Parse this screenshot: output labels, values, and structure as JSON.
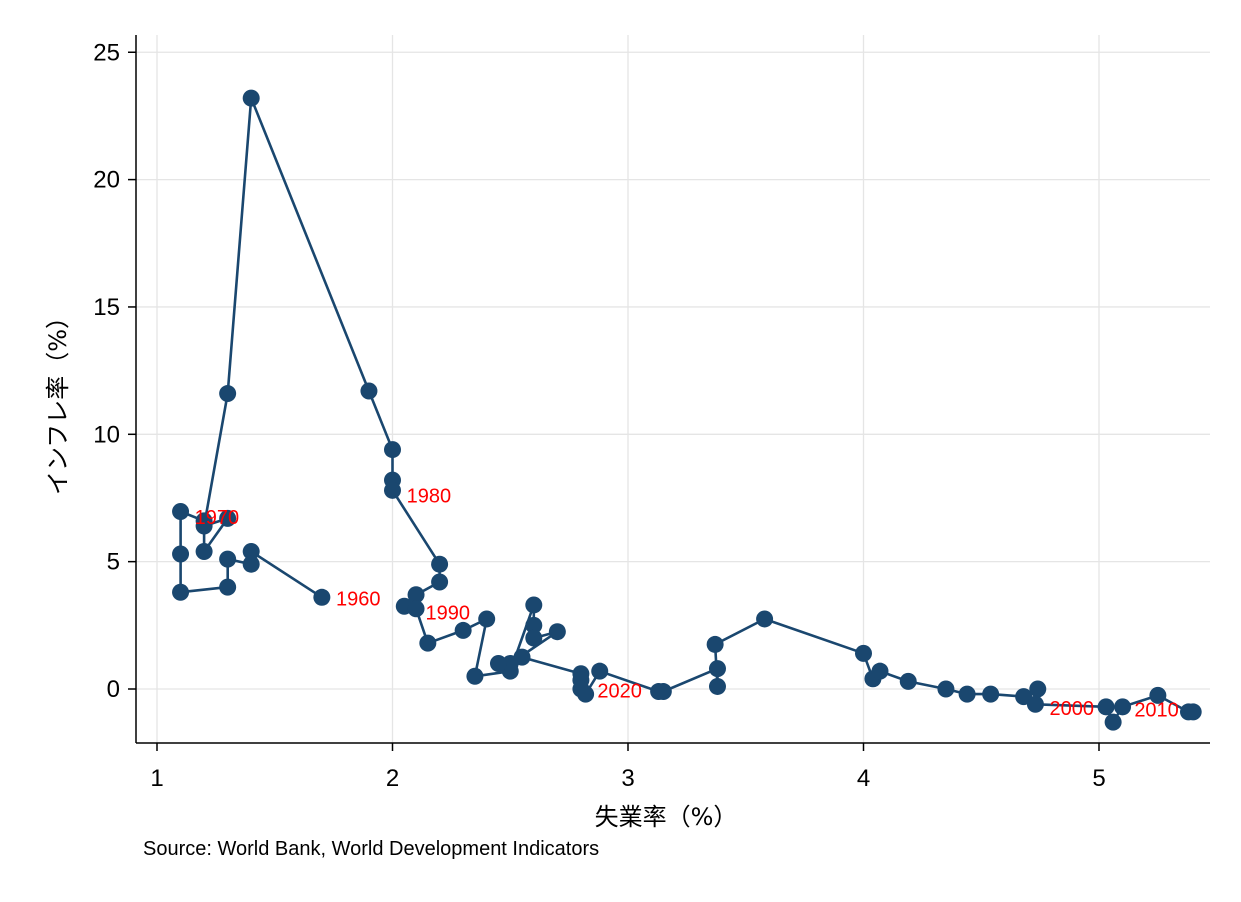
{
  "source_note": "Source: World Bank, World Development Indicators",
  "chart_data": {
    "type": "scatter",
    "connected": true,
    "title": "",
    "xlabel": "失業率（%）",
    "ylabel": "インフレ率（%）",
    "xlim": [
      1,
      5.4
    ],
    "ylim": [
      -2,
      26
    ],
    "xticks": [
      1,
      2,
      3,
      4,
      5
    ],
    "yticks": [
      0,
      5,
      10,
      15,
      20,
      25
    ],
    "grid": true,
    "legend": "none",
    "colors": {
      "series": "#1a476f",
      "labels": "#ff0000",
      "grid": "#e5e5e5"
    },
    "series": [
      {
        "x": [
          1.7,
          1.4,
          1.4,
          1.3,
          1.3,
          1.1,
          1.1,
          1.1,
          1.2,
          1.2,
          1.3,
          1.2,
          1.3,
          1.4,
          1.9,
          2.0,
          2.0,
          2.0,
          2.2,
          2.2,
          2.1,
          2.05,
          2.1,
          2.15,
          2.3,
          2.4,
          2.35,
          2.5,
          2.6,
          2.6,
          2.6,
          2.7,
          2.5,
          2.45,
          2.55,
          2.8,
          2.8,
          2.8,
          2.82,
          2.88,
          3.13,
          3.15,
          3.38,
          3.38,
          3.37,
          3.58,
          4.0,
          4.04,
          4.07,
          4.19,
          4.35,
          4.44,
          4.54,
          4.68,
          4.74,
          4.73,
          5.03,
          5.06,
          5.1,
          5.25,
          5.38,
          5.4
        ],
        "y": [
          3.6,
          5.4,
          4.9,
          5.1,
          4.0,
          3.8,
          5.3,
          6.97,
          6.6,
          5.4,
          6.7,
          6.4,
          11.6,
          23.2,
          11.7,
          9.4,
          8.2,
          7.8,
          4.9,
          4.2,
          3.7,
          3.25,
          3.15,
          1.8,
          2.3,
          2.75,
          0.5,
          0.7,
          3.3,
          2.5,
          2.0,
          2.25,
          1.0,
          1.0,
          1.25,
          0.6,
          0.35,
          0.0,
          -0.2,
          0.7,
          -0.1,
          -0.1,
          0.8,
          0.1,
          1.75,
          2.75,
          1.4,
          0.4,
          0.7,
          0.3,
          0.0,
          -0.2,
          -0.2,
          -0.3,
          0.0,
          -0.6,
          -0.7,
          -1.3,
          -0.7,
          -0.25,
          -0.9,
          -0.9
        ]
      }
    ],
    "annotations": [
      {
        "text": "1960",
        "x": 1.76,
        "y": 3.55
      },
      {
        "text": "1970",
        "x": 1.16,
        "y": 6.75
      },
      {
        "text": "1980",
        "x": 2.06,
        "y": 7.6
      },
      {
        "text": "1990",
        "x": 2.14,
        "y": 3.0
      },
      {
        "text": "2000",
        "x": 4.79,
        "y": -0.75
      },
      {
        "text": "2010",
        "x": 5.15,
        "y": -0.8
      },
      {
        "text": "2020",
        "x": 2.87,
        "y": -0.05
      }
    ]
  }
}
